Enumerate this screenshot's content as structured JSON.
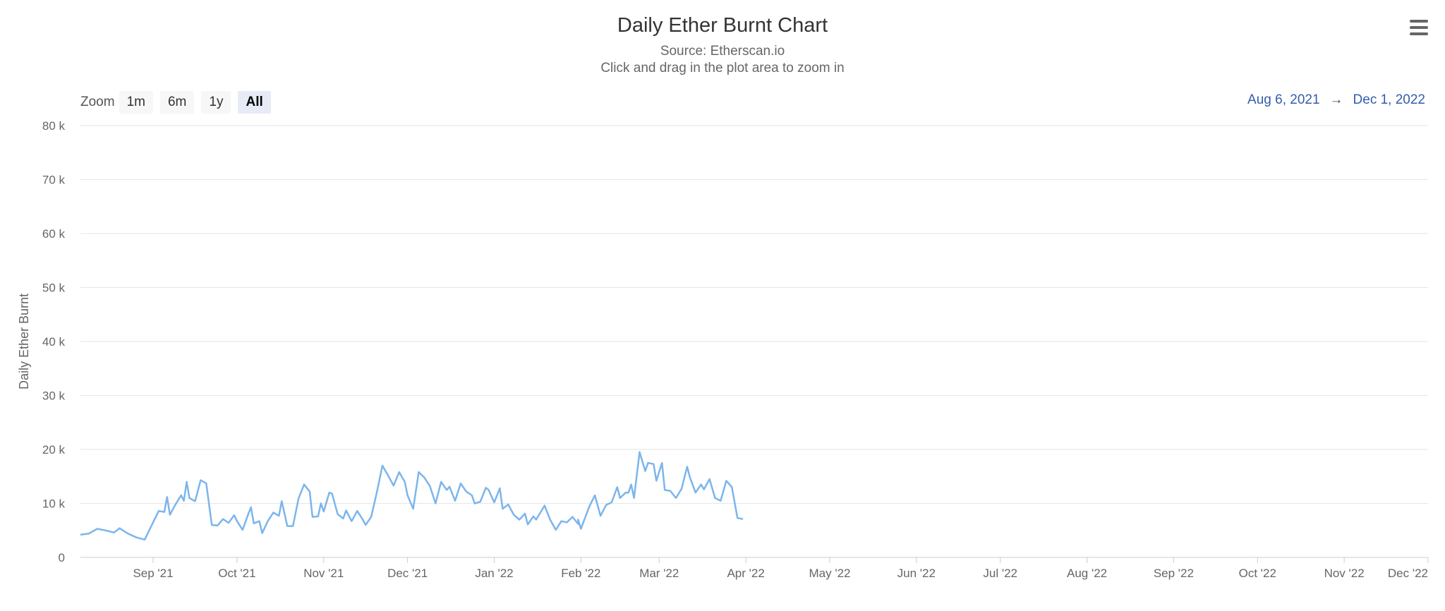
{
  "toolbar": {
    "menu_icon": "hamburger-menu-icon"
  },
  "range_selector": {
    "zoom_label": "Zoom",
    "buttons": [
      "1m",
      "6m",
      "1y",
      "All"
    ],
    "selected": "All",
    "from": "Aug 6, 2021",
    "arrow": "→",
    "to": "Dec 1, 2022"
  },
  "colors": {
    "line": "#7cb5ec",
    "grid": "#e6e6e6",
    "axis_text": "#666666",
    "selected_button_bg": "#e6ebf5"
  },
  "chart_data": {
    "type": "line",
    "title": "Daily Ether Burnt Chart",
    "subtitle": [
      "Source: Etherscan.io",
      "Click and drag in the plot area to zoom in"
    ],
    "ylabel": "Daily Ether Burnt",
    "xlabel": "",
    "ylim": [
      0,
      80000
    ],
    "xlim": [
      "2021-08-06",
      "2022-12-01"
    ],
    "grid": true,
    "y_ticks": [
      {
        "value": 0,
        "label": "0"
      },
      {
        "value": 10000,
        "label": "10 k"
      },
      {
        "value": 20000,
        "label": "20 k"
      },
      {
        "value": 30000,
        "label": "30 k"
      },
      {
        "value": 40000,
        "label": "40 k"
      },
      {
        "value": 50000,
        "label": "50 k"
      },
      {
        "value": 60000,
        "label": "60 k"
      },
      {
        "value": 70000,
        "label": "70 k"
      },
      {
        "value": 80000,
        "label": "80 k"
      }
    ],
    "x_ticks": [
      {
        "date": "2021-09-01",
        "label": "Sep '21"
      },
      {
        "date": "2021-10-01",
        "label": "Oct '21"
      },
      {
        "date": "2021-11-01",
        "label": "Nov '21"
      },
      {
        "date": "2021-12-01",
        "label": "Dec '21"
      },
      {
        "date": "2022-01-01",
        "label": "Jan '22"
      },
      {
        "date": "2022-02-01",
        "label": "Feb '22"
      },
      {
        "date": "2022-03-01",
        "label": "Mar '22"
      },
      {
        "date": "2022-04-01",
        "label": "Apr '22"
      },
      {
        "date": "2022-05-01",
        "label": "May '22"
      },
      {
        "date": "2022-06-01",
        "label": "Jun '22"
      },
      {
        "date": "2022-07-01",
        "label": "Jul '22"
      },
      {
        "date": "2022-08-01",
        "label": "Aug '22"
      },
      {
        "date": "2022-09-01",
        "label": "Sep '22"
      },
      {
        "date": "2022-10-01",
        "label": "Oct '22"
      },
      {
        "date": "2022-11-01",
        "label": "Nov '22"
      },
      {
        "date": "2022-12-01",
        "label": "Dec '22"
      }
    ],
    "series": [
      {
        "name": "Daily Ether Burnt",
        "points": [
          [
            "2021-08-06",
            4200
          ],
          [
            "2021-08-09",
            4400
          ],
          [
            "2021-08-12",
            5300
          ],
          [
            "2021-08-15",
            5000
          ],
          [
            "2021-08-18",
            4600
          ],
          [
            "2021-08-20",
            5400
          ],
          [
            "2021-08-23",
            4400
          ],
          [
            "2021-08-26",
            3700
          ],
          [
            "2021-08-29",
            3300
          ],
          [
            "2021-09-01",
            6500
          ],
          [
            "2021-09-03",
            8600
          ],
          [
            "2021-09-05",
            8400
          ],
          [
            "2021-09-06",
            11200
          ],
          [
            "2021-09-07",
            7900
          ],
          [
            "2021-09-09",
            9800
          ],
          [
            "2021-09-11",
            11500
          ],
          [
            "2021-09-12",
            10500
          ],
          [
            "2021-09-13",
            14000
          ],
          [
            "2021-09-14",
            11000
          ],
          [
            "2021-09-16",
            10400
          ],
          [
            "2021-09-18",
            14300
          ],
          [
            "2021-09-20",
            13700
          ],
          [
            "2021-09-22",
            6000
          ],
          [
            "2021-09-24",
            5900
          ],
          [
            "2021-09-26",
            7100
          ],
          [
            "2021-09-28",
            6400
          ],
          [
            "2021-09-30",
            7800
          ],
          [
            "2021-10-01",
            6700
          ],
          [
            "2021-10-03",
            5100
          ],
          [
            "2021-10-05",
            8000
          ],
          [
            "2021-10-06",
            9300
          ],
          [
            "2021-10-07",
            6300
          ],
          [
            "2021-10-09",
            6700
          ],
          [
            "2021-10-10",
            4500
          ],
          [
            "2021-10-12",
            6700
          ],
          [
            "2021-10-14",
            8300
          ],
          [
            "2021-10-16",
            7700
          ],
          [
            "2021-10-17",
            10400
          ],
          [
            "2021-10-19",
            5800
          ],
          [
            "2021-10-21",
            5800
          ],
          [
            "2021-10-23",
            10900
          ],
          [
            "2021-10-25",
            13500
          ],
          [
            "2021-10-27",
            12200
          ],
          [
            "2021-10-28",
            7500
          ],
          [
            "2021-10-30",
            7600
          ],
          [
            "2021-10-31",
            10000
          ],
          [
            "2021-11-01",
            8500
          ],
          [
            "2021-11-03",
            12000
          ],
          [
            "2021-11-04",
            11800
          ],
          [
            "2021-11-06",
            8000
          ],
          [
            "2021-11-08",
            7200
          ],
          [
            "2021-11-09",
            8700
          ],
          [
            "2021-11-11",
            6700
          ],
          [
            "2021-11-13",
            8600
          ],
          [
            "2021-11-15",
            7000
          ],
          [
            "2021-11-16",
            6000
          ],
          [
            "2021-11-18",
            7500
          ],
          [
            "2021-11-20",
            12000
          ],
          [
            "2021-11-22",
            17000
          ],
          [
            "2021-11-24",
            15200
          ],
          [
            "2021-11-26",
            13300
          ],
          [
            "2021-11-28",
            15800
          ],
          [
            "2021-11-30",
            14000
          ],
          [
            "2021-12-01",
            11500
          ],
          [
            "2021-12-03",
            9000
          ],
          [
            "2021-12-05",
            15800
          ],
          [
            "2021-12-07",
            14800
          ],
          [
            "2021-12-09",
            13200
          ],
          [
            "2021-12-11",
            10000
          ],
          [
            "2021-12-13",
            14000
          ],
          [
            "2021-12-15",
            12500
          ],
          [
            "2021-12-16",
            13100
          ],
          [
            "2021-12-18",
            10500
          ],
          [
            "2021-12-20",
            13700
          ],
          [
            "2021-12-22",
            12200
          ],
          [
            "2021-12-24",
            11500
          ],
          [
            "2021-12-25",
            10000
          ],
          [
            "2021-12-27",
            10300
          ],
          [
            "2021-12-29",
            12900
          ],
          [
            "2021-12-30",
            12500
          ],
          [
            "2022-01-01",
            10200
          ],
          [
            "2022-01-03",
            12800
          ],
          [
            "2022-01-04",
            9000
          ],
          [
            "2022-01-06",
            9800
          ],
          [
            "2022-01-08",
            7900
          ],
          [
            "2022-01-10",
            7000
          ],
          [
            "2022-01-12",
            8100
          ],
          [
            "2022-01-13",
            6100
          ],
          [
            "2022-01-15",
            7600
          ],
          [
            "2022-01-16",
            7000
          ],
          [
            "2022-01-19",
            9600
          ],
          [
            "2022-01-21",
            7000
          ],
          [
            "2022-01-23",
            5100
          ],
          [
            "2022-01-25",
            6700
          ],
          [
            "2022-01-27",
            6500
          ],
          [
            "2022-01-29",
            7500
          ],
          [
            "2022-01-31",
            6200
          ],
          [
            "2022-02-01",
            5300
          ],
          [
            "2022-02-04",
            9400
          ],
          [
            "2022-02-06",
            11500
          ],
          [
            "2022-02-08",
            7700
          ],
          [
            "2022-02-10",
            9700
          ],
          [
            "2022-02-12",
            10200
          ],
          [
            "2022-02-14",
            13000
          ],
          [
            "2022-02-15",
            11000
          ],
          [
            "2022-02-17",
            12000
          ],
          [
            "2022-02-18",
            12000
          ],
          [
            "2022-02-19",
            13500
          ],
          [
            "2022-02-20",
            11000
          ],
          [
            "2022-02-22",
            19500
          ],
          [
            "2022-02-24",
            16000
          ],
          [
            "2022-02-25",
            17500
          ],
          [
            "2022-02-27",
            17300
          ],
          [
            "2022-02-28",
            14200
          ],
          [
            "2022-03-02",
            17500
          ],
          [
            "2022-03-03",
            12500
          ],
          [
            "2022-03-05",
            12300
          ],
          [
            "2022-03-07",
            11000
          ],
          [
            "2022-03-09",
            12700
          ],
          [
            "2022-03-11",
            16800
          ],
          [
            "2022-03-12",
            14800
          ],
          [
            "2022-03-14",
            12000
          ],
          [
            "2022-03-16",
            13500
          ],
          [
            "2022-03-17",
            12600
          ],
          [
            "2022-03-19",
            14500
          ],
          [
            "2022-03-21",
            11000
          ],
          [
            "2022-03-23",
            10500
          ],
          [
            "2022-03-25",
            14200
          ],
          [
            "2022-03-27",
            13000
          ],
          [
            "2022-03-29",
            7300
          ],
          [
            "2022-03-31",
            7100
          ],
          [
            "2022-01-31",
            7000
          ]
        ]
      }
    ]
  }
}
